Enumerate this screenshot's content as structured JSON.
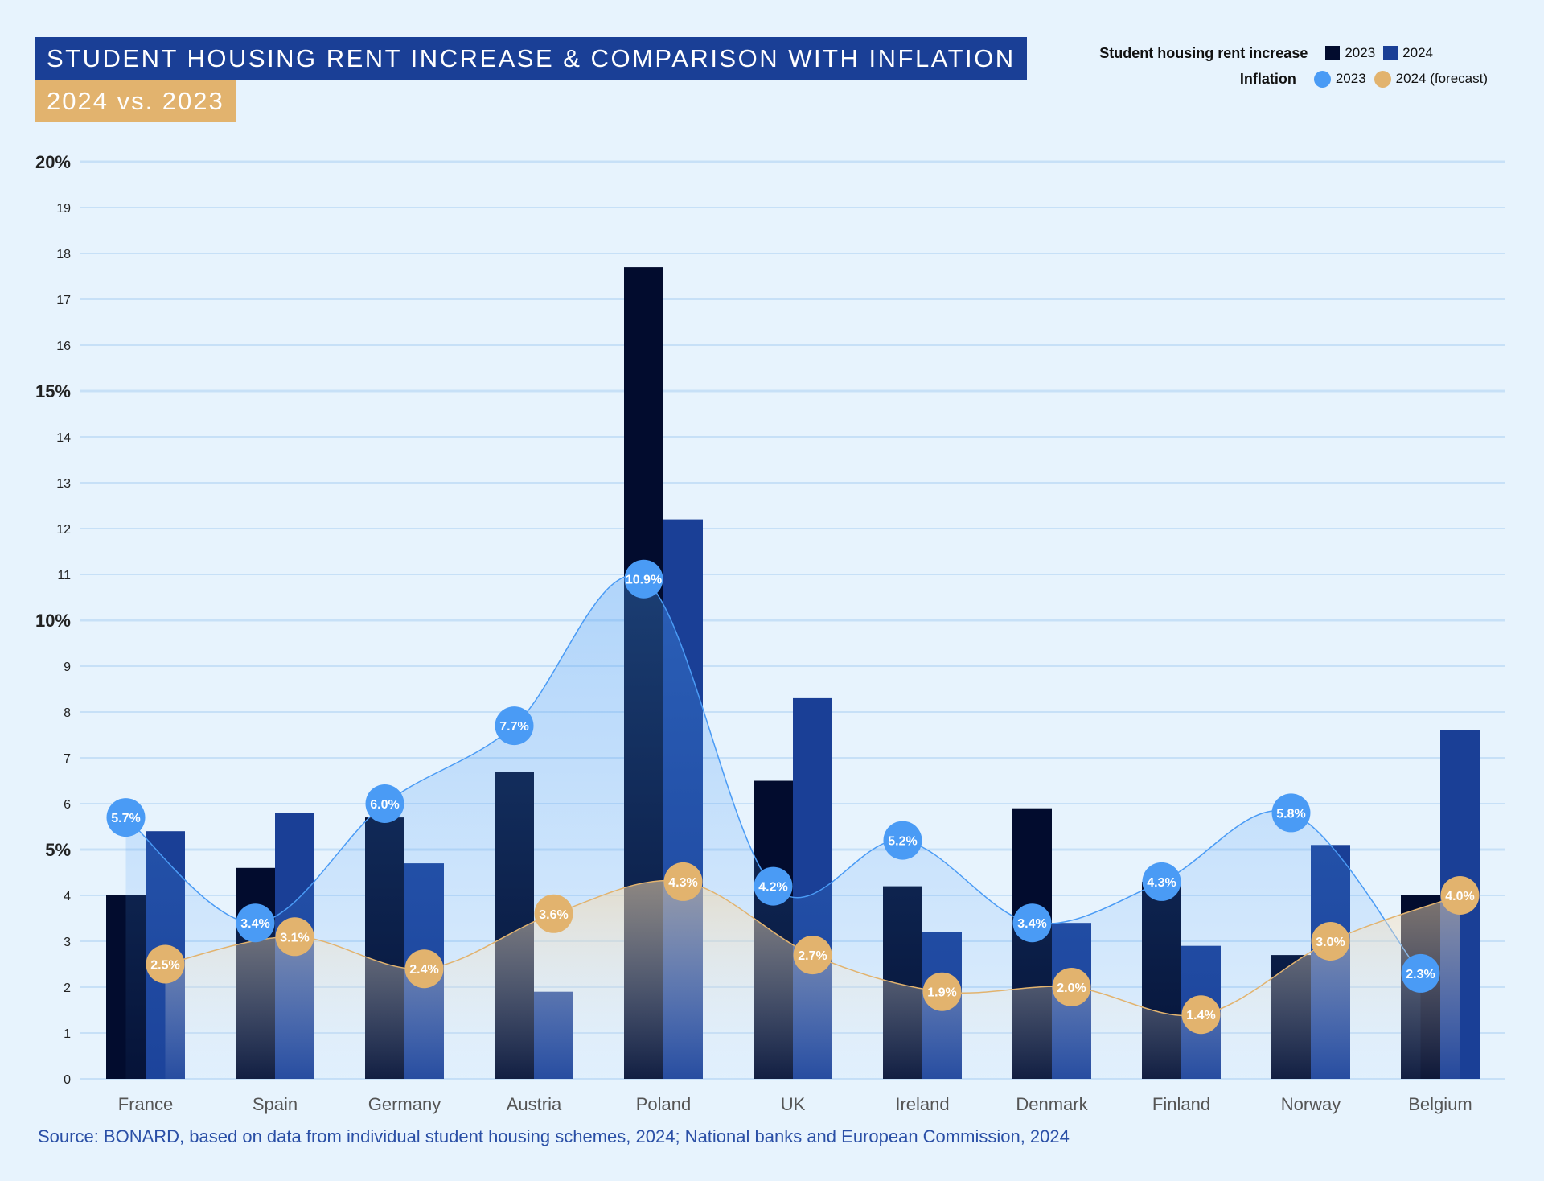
{
  "title": "STUDENT HOUSING RENT INCREASE & COMPARISON WITH INFLATION",
  "subtitle": "2024 vs. 2023",
  "legend": {
    "rent_label": "Student housing rent increase",
    "rent_2023": "2023",
    "rent_2024": "2024",
    "inflation_label": "Inflation",
    "infl_2023": "2023",
    "infl_2024": "2024 (forecast)"
  },
  "colors": {
    "rent_2023": "#020c2e",
    "rent_2024": "#1a3f96",
    "infl_2023": "#4a9bf5",
    "infl_2024": "#e2b36e"
  },
  "source": "Source: BONARD, based on data from individual student housing schemes, 2024; National banks and European Commission, 2024",
  "chart_data": {
    "type": "bar",
    "title": "STUDENT HOUSING RENT INCREASE & COMPARISON WITH INFLATION",
    "categories": [
      "France",
      "Spain",
      "Germany",
      "Austria",
      "Poland",
      "UK",
      "Ireland",
      "Denmark",
      "Finland",
      "Norway",
      "Belgium"
    ],
    "ylim": [
      0,
      20
    ],
    "yticks": [
      "0",
      "1",
      "2",
      "3",
      "4",
      "5%",
      "6",
      "7",
      "8",
      "9",
      "10%",
      "11",
      "12",
      "13",
      "14",
      "15%",
      "16",
      "17",
      "18",
      "19",
      "20%"
    ],
    "series": [
      {
        "name": "Student housing rent increase 2023",
        "type": "bar",
        "values": [
          4.0,
          4.6,
          5.7,
          6.7,
          17.7,
          6.5,
          4.2,
          5.9,
          4.3,
          2.7,
          4.0
        ]
      },
      {
        "name": "Student housing rent increase 2024",
        "type": "bar",
        "values": [
          5.4,
          5.8,
          4.7,
          1.9,
          12.2,
          8.3,
          3.2,
          3.4,
          2.9,
          5.1,
          7.6
        ]
      },
      {
        "name": "Inflation 2023",
        "type": "line",
        "values": [
          5.7,
          3.4,
          6.0,
          7.7,
          10.9,
          4.2,
          5.2,
          3.4,
          4.3,
          5.8,
          2.3
        ],
        "labels": [
          "5.7%",
          "3.4%",
          "6.0%",
          "7.7%",
          "10.9%",
          "4.2%",
          "5.2%",
          "3.4%",
          "4.3%",
          "5.8%",
          "2.3%"
        ]
      },
      {
        "name": "Inflation 2024 (forecast)",
        "type": "line",
        "values": [
          2.5,
          3.1,
          2.4,
          3.6,
          4.3,
          2.7,
          1.9,
          2.0,
          1.4,
          3.0,
          4.0
        ],
        "labels": [
          "2.5%",
          "3.1%",
          "2.4%",
          "3.6%",
          "4.3%",
          "2.7%",
          "1.9%",
          "2.0%",
          "1.4%",
          "3.0%",
          "4.0%"
        ]
      }
    ],
    "grid": true,
    "legend_position": "top-right"
  }
}
